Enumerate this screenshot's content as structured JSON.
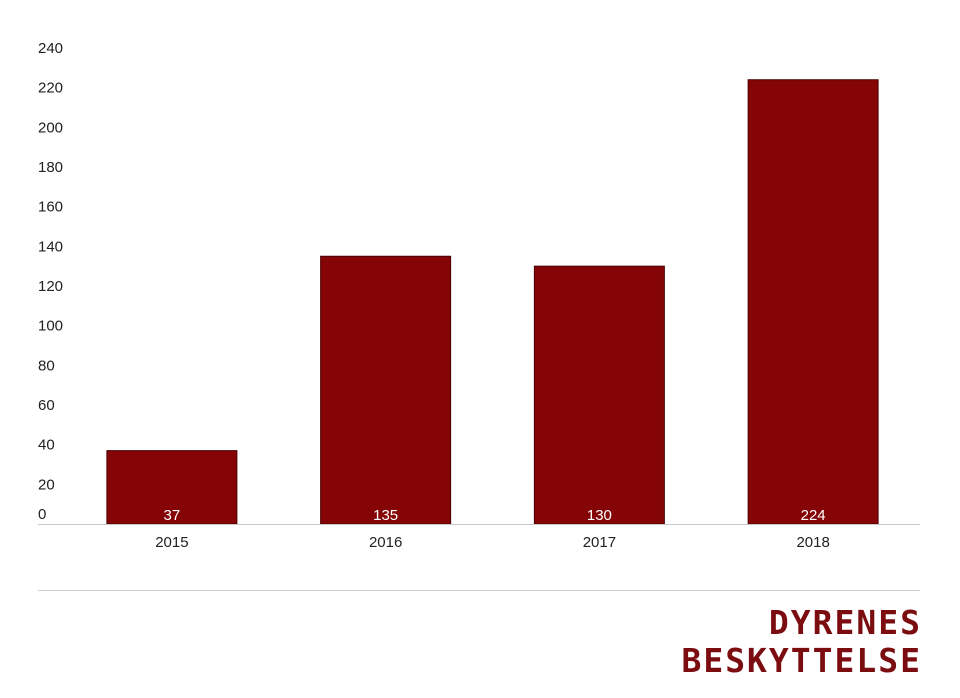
{
  "chart_data": {
    "type": "bar",
    "categories": [
      "2015",
      "2016",
      "2017",
      "2018"
    ],
    "values": [
      37,
      135,
      130,
      224
    ],
    "title": "",
    "xlabel": "",
    "ylabel": "",
    "ylim": [
      0,
      240
    ],
    "yticks": [
      0,
      20,
      40,
      60,
      80,
      100,
      120,
      140,
      160,
      180,
      200,
      220,
      240
    ],
    "grid": false,
    "legend": "none",
    "data_labels": [
      "37",
      "135",
      "130",
      "224"
    ],
    "bar_color": "#850406",
    "bar_outline_color": "#4a0003",
    "label_color": "#ffffff",
    "axis_line_color": "#c8c8c8"
  },
  "brand": {
    "line1": "DYRENES",
    "line2": "BESKYTTELSE",
    "color": "#7b0c10"
  }
}
